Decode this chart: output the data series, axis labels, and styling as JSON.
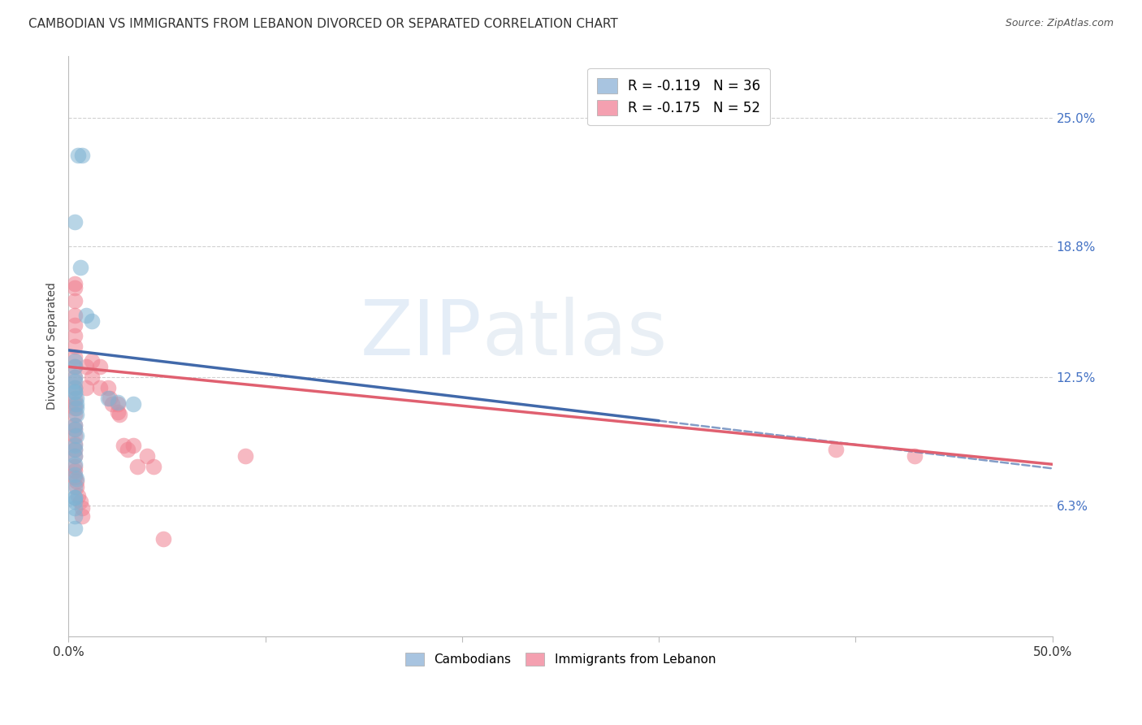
{
  "title": "CAMBODIAN VS IMMIGRANTS FROM LEBANON DIVORCED OR SEPARATED CORRELATION CHART",
  "source": "Source: ZipAtlas.com",
  "ylabel": "Divorced or Separated",
  "ytick_labels": [
    "25.0%",
    "18.8%",
    "12.5%",
    "6.3%"
  ],
  "ytick_values": [
    0.25,
    0.188,
    0.125,
    0.063
  ],
  "xlim": [
    0.0,
    0.5
  ],
  "ylim": [
    0.0,
    0.28
  ],
  "legend_label_blue": "R = -0.119   N = 36",
  "legend_label_pink": "R = -0.175   N = 52",
  "legend_color_blue": "#a8c4e0",
  "legend_color_pink": "#f4a0b0",
  "cambodian_scatter_x": [
    0.005,
    0.007,
    0.003,
    0.006,
    0.009,
    0.012,
    0.003,
    0.003,
    0.003,
    0.003,
    0.003,
    0.003,
    0.003,
    0.004,
    0.004,
    0.004,
    0.004,
    0.003,
    0.003,
    0.004,
    0.003,
    0.003,
    0.003,
    0.003,
    0.003,
    0.004,
    0.003,
    0.003,
    0.003,
    0.003,
    0.003,
    0.02,
    0.025,
    0.033,
    0.003,
    0.003
  ],
  "cambodian_scatter_y": [
    0.232,
    0.232,
    0.2,
    0.178,
    0.155,
    0.152,
    0.133,
    0.13,
    0.125,
    0.123,
    0.12,
    0.118,
    0.118,
    0.115,
    0.112,
    0.11,
    0.107,
    0.102,
    0.1,
    0.097,
    0.092,
    0.09,
    0.087,
    0.083,
    0.078,
    0.076,
    0.072,
    0.067,
    0.065,
    0.062,
    0.058,
    0.115,
    0.113,
    0.112,
    0.067,
    0.052
  ],
  "lebanon_scatter_x": [
    0.003,
    0.003,
    0.003,
    0.003,
    0.003,
    0.003,
    0.003,
    0.003,
    0.003,
    0.003,
    0.003,
    0.003,
    0.003,
    0.003,
    0.003,
    0.003,
    0.003,
    0.003,
    0.003,
    0.003,
    0.003,
    0.003,
    0.003,
    0.003,
    0.004,
    0.004,
    0.005,
    0.006,
    0.007,
    0.007,
    0.009,
    0.009,
    0.012,
    0.012,
    0.016,
    0.016,
    0.02,
    0.021,
    0.022,
    0.025,
    0.025,
    0.026,
    0.028,
    0.03,
    0.033,
    0.035,
    0.04,
    0.043,
    0.048,
    0.43,
    0.39,
    0.09
  ],
  "lebanon_scatter_y": [
    0.17,
    0.168,
    0.162,
    0.155,
    0.15,
    0.145,
    0.14,
    0.135,
    0.13,
    0.125,
    0.12,
    0.115,
    0.112,
    0.11,
    0.107,
    0.102,
    0.1,
    0.097,
    0.093,
    0.09,
    0.087,
    0.082,
    0.08,
    0.077,
    0.075,
    0.072,
    0.068,
    0.065,
    0.062,
    0.058,
    0.13,
    0.12,
    0.133,
    0.125,
    0.13,
    0.12,
    0.12,
    0.115,
    0.112,
    0.112,
    0.108,
    0.107,
    0.092,
    0.09,
    0.092,
    0.082,
    0.087,
    0.082,
    0.047,
    0.087,
    0.09,
    0.087
  ],
  "blue_solid_line_x": [
    0.0,
    0.3
  ],
  "blue_solid_line_y": [
    0.138,
    0.104
  ],
  "blue_dash_line_x": [
    0.3,
    0.5
  ],
  "blue_dash_line_y": [
    0.104,
    0.081
  ],
  "pink_solid_line_x": [
    0.0,
    0.5
  ],
  "pink_solid_line_y": [
    0.13,
    0.083
  ],
  "scatter_color_blue": "#7fb3d3",
  "scatter_color_pink": "#f08090",
  "line_color_blue": "#4169aa",
  "line_color_pink": "#e06070",
  "grid_color": "#cccccc",
  "background_color": "#ffffff",
  "title_fontsize": 11,
  "axis_label_fontsize": 10,
  "watermark_zip": "ZIP",
  "watermark_atlas": "atlas"
}
